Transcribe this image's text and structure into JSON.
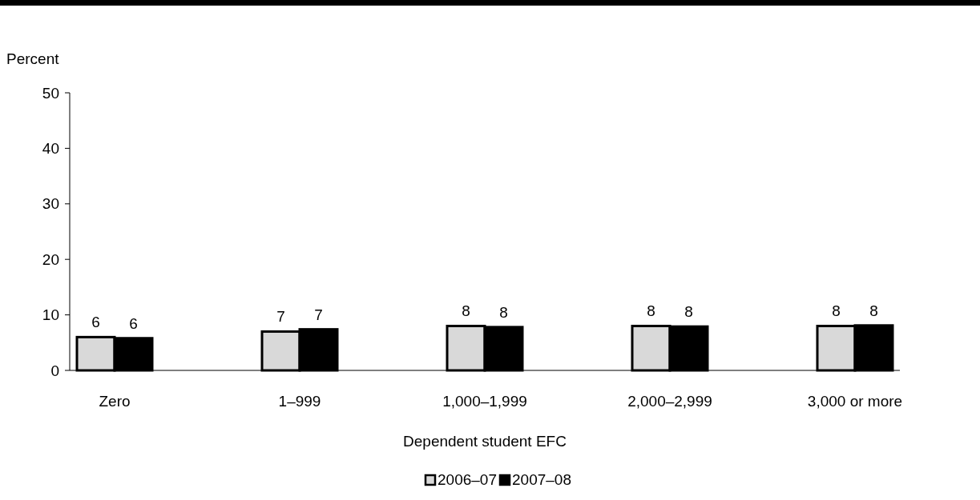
{
  "chart_data": {
    "type": "bar",
    "xlabel": "Dependent student EFC",
    "ylabel": "Percent",
    "categories": [
      "Zero",
      "1–999",
      "1,000–1,999",
      "2,000–2,999",
      "3,000 or more"
    ],
    "series": [
      {
        "name": "2006–07",
        "color": "#d9d9d9",
        "values": [
          6.0,
          7.0,
          8.0,
          8.0,
          8.0
        ],
        "value_labels": [
          "6",
          "7",
          "8",
          "8",
          "8"
        ]
      },
      {
        "name": "2007–08",
        "color": "#000000",
        "values": [
          5.8,
          7.4,
          7.8,
          7.9,
          8.1
        ],
        "value_labels": [
          "6",
          "7",
          "8",
          "8",
          "8"
        ]
      }
    ],
    "ylim": [
      0,
      50
    ],
    "yticks": [
      0,
      10,
      20,
      30,
      40,
      50
    ],
    "grid": false,
    "legend": "bottom"
  }
}
